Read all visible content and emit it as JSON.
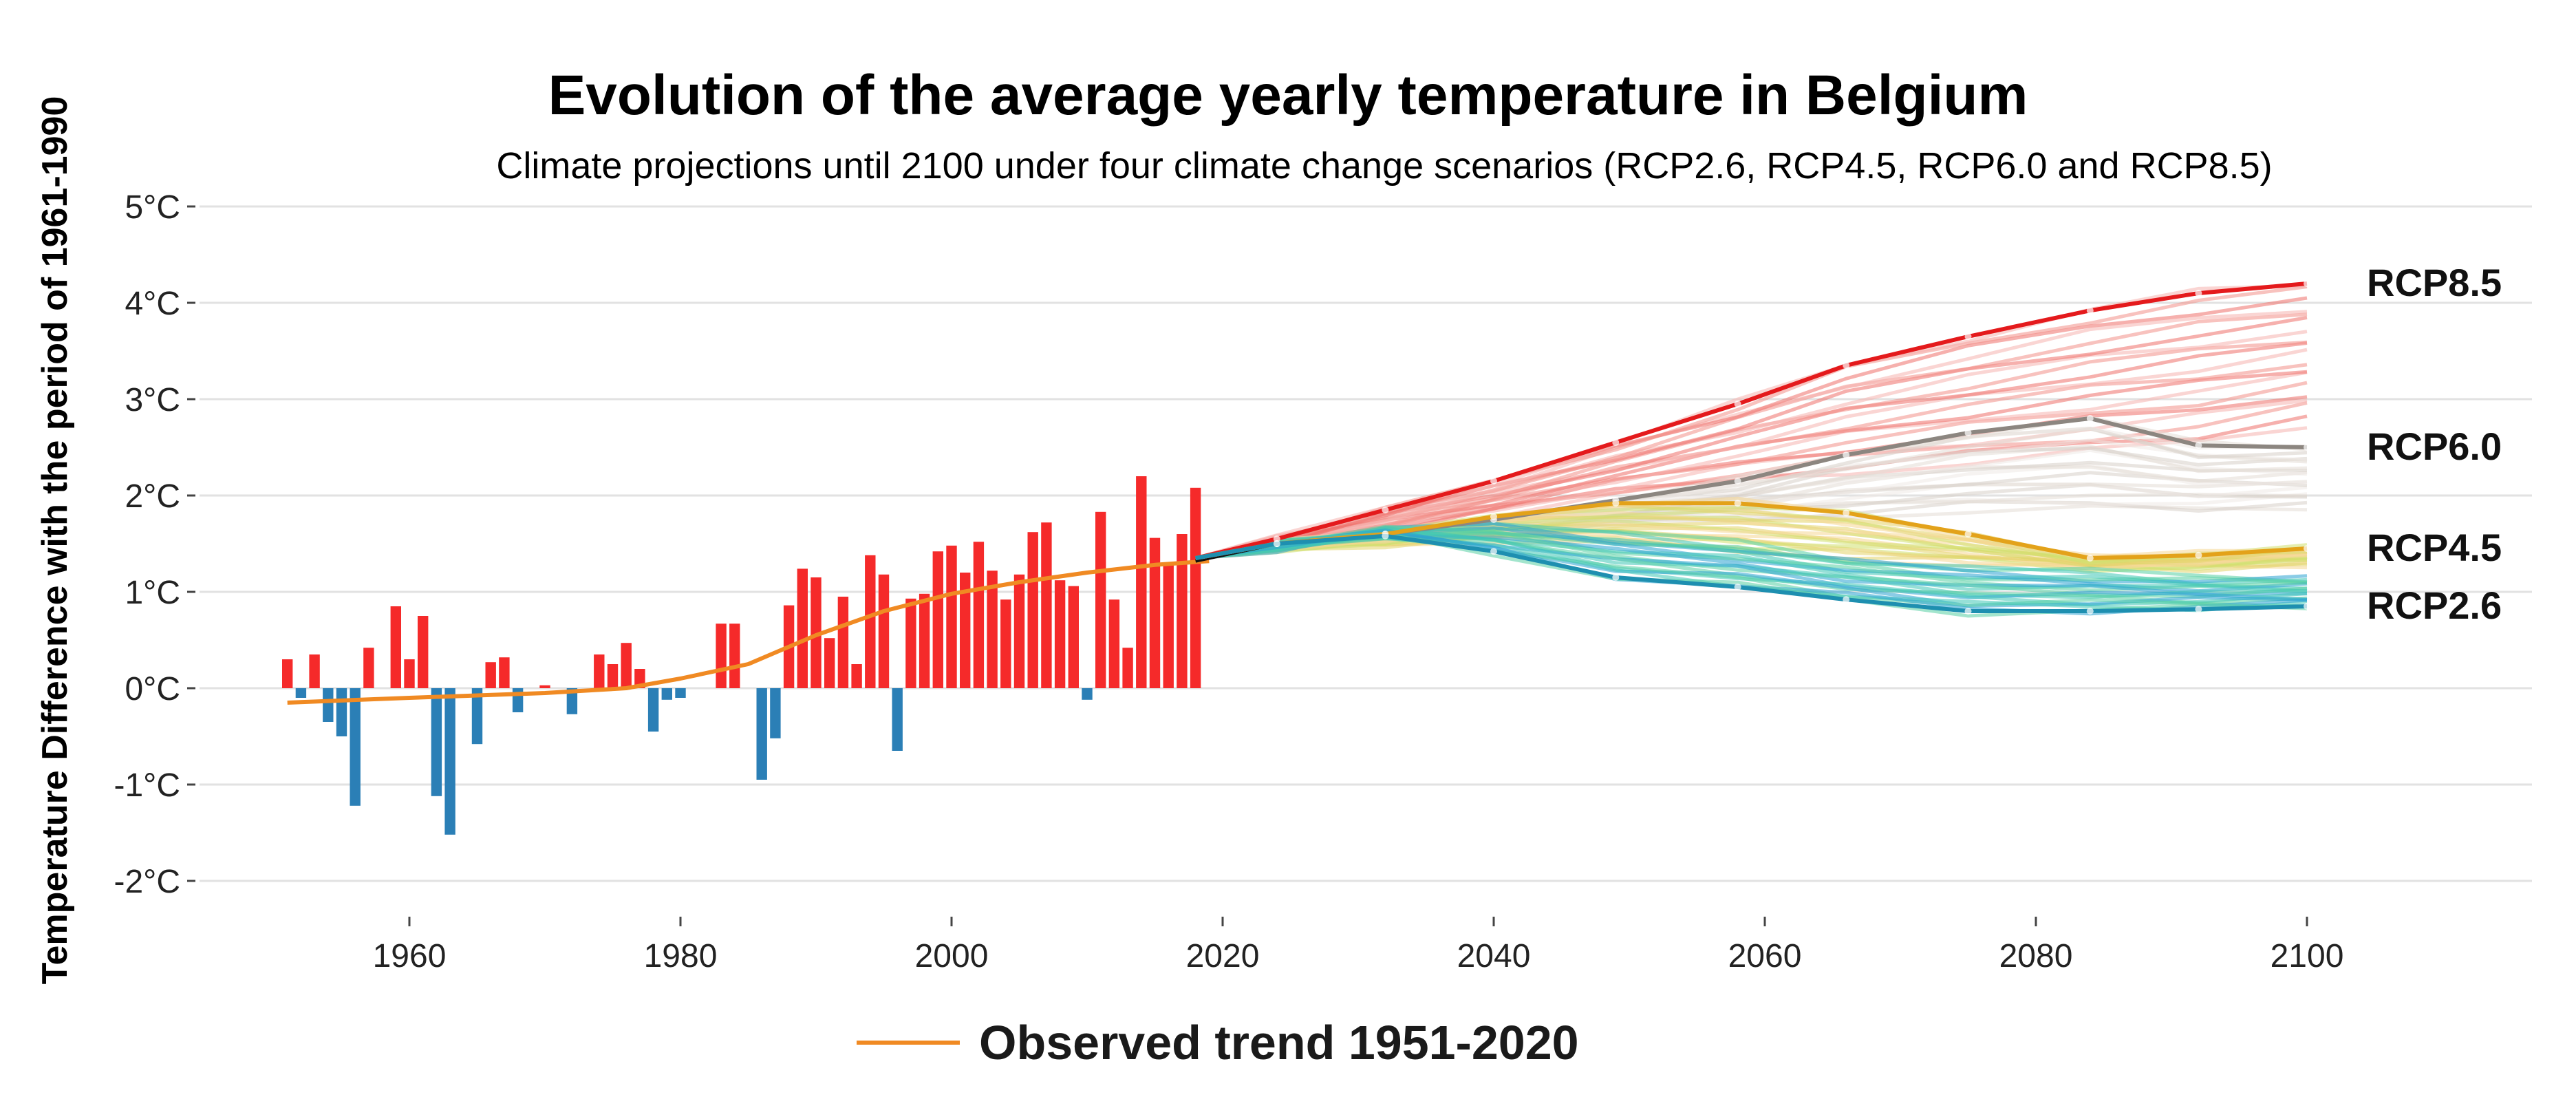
{
  "chart_data": {
    "type": "bar+line",
    "title": "Evolution of the average yearly temperature in Belgium",
    "subtitle": "Climate projections until 2100 under four climate change scenarios (RCP2.6, RCP4.5, RCP6.0 and RCP8.5)",
    "ylabel": "Temperature Difference with the period of 1961-1990",
    "xlabel": "",
    "xlim": [
      1945,
      2112
    ],
    "ylim": [
      -2.3,
      5
    ],
    "x_ticks": [
      1960,
      1980,
      2000,
      2020,
      2040,
      2060,
      2080,
      2100
    ],
    "y_ticks": [
      {
        "value": 5,
        "label": "5°C"
      },
      {
        "value": 4,
        "label": "4°C"
      },
      {
        "value": 3,
        "label": "3°C"
      },
      {
        "value": 2,
        "label": "2°C"
      },
      {
        "value": 1,
        "label": "1°C"
      },
      {
        "value": 0,
        "label": "0°C"
      },
      {
        "value": -1,
        "label": "-1°C"
      },
      {
        "value": -2,
        "label": "-2°C"
      }
    ],
    "grid": true,
    "colors": {
      "positive": "#f52a2a",
      "negative": "#2b7fb6",
      "trend": "#f08a23"
    },
    "observed_anomalies": {
      "years": [
        1951,
        1952,
        1953,
        1954,
        1955,
        1956,
        1957,
        1958,
        1959,
        1960,
        1961,
        1962,
        1963,
        1964,
        1965,
        1966,
        1967,
        1968,
        1969,
        1970,
        1971,
        1972,
        1973,
        1974,
        1975,
        1976,
        1977,
        1978,
        1979,
        1980,
        1981,
        1982,
        1983,
        1984,
        1985,
        1986,
        1987,
        1988,
        1989,
        1990,
        1991,
        1992,
        1993,
        1994,
        1995,
        1996,
        1997,
        1998,
        1999,
        2000,
        2001,
        2002,
        2003,
        2004,
        2005,
        2006,
        2007,
        2008,
        2009,
        2010,
        2011,
        2012,
        2013,
        2014,
        2015,
        2016,
        2017,
        2018
      ],
      "values": [
        0.3,
        -0.1,
        0.35,
        -0.35,
        -0.5,
        -1.22,
        0.42,
        0.0,
        0.85,
        0.3,
        0.75,
        -1.12,
        -1.52,
        0.0,
        -0.58,
        0.27,
        0.32,
        -0.25,
        0.0,
        0.03,
        0.0,
        -0.27,
        0.0,
        0.35,
        0.25,
        0.47,
        0.2,
        -0.45,
        -0.12,
        -0.1,
        0.0,
        0.0,
        0.67,
        0.67,
        0.0,
        -0.95,
        -0.52,
        0.86,
        1.24,
        1.15,
        0.52,
        0.95,
        0.25,
        1.38,
        1.18,
        -0.65,
        0.93,
        0.98,
        1.42,
        1.48,
        1.2,
        1.52,
        1.22,
        0.92,
        1.18,
        1.62,
        1.72,
        1.12,
        1.06,
        -0.12,
        1.83,
        0.92,
        0.42,
        2.2,
        1.56,
        1.3,
        1.6,
        2.08
      ]
    },
    "observed_trend": {
      "name": "Observed trend 1951-2020",
      "x": [
        1951,
        1960,
        1970,
        1976,
        1980,
        1985,
        1990,
        1995,
        2000,
        2005,
        2010,
        2015,
        2019
      ],
      "y": [
        -0.15,
        -0.1,
        -0.05,
        0.0,
        0.1,
        0.25,
        0.55,
        0.8,
        0.98,
        1.1,
        1.2,
        1.28,
        1.32
      ]
    },
    "scenarios": [
      {
        "name": "RCP8.5",
        "color": "#e41a1c",
        "label_value": 4.2,
        "x": [
          2018,
          2024,
          2032,
          2040,
          2049,
          2058,
          2066,
          2075,
          2084,
          2092,
          2100
        ],
        "y": [
          1.35,
          1.55,
          1.85,
          2.15,
          2.55,
          2.95,
          3.35,
          3.65,
          3.92,
          4.1,
          4.2
        ],
        "spread": [
          1.35,
          1.48,
          1.65,
          1.82,
          2.0,
          2.15,
          2.25,
          2.35,
          2.45,
          2.55,
          2.75
        ]
      },
      {
        "name": "RCP6.0",
        "color": "#8c8680",
        "label_value": 2.5,
        "x": [
          2018,
          2024,
          2032,
          2040,
          2049,
          2058,
          2066,
          2075,
          2084,
          2092,
          2100
        ],
        "y": [
          1.35,
          1.5,
          1.6,
          1.75,
          1.95,
          2.15,
          2.42,
          2.65,
          2.8,
          2.52,
          2.5
        ],
        "spread": [
          1.35,
          1.45,
          1.55,
          1.6,
          1.7,
          1.75,
          1.8,
          1.85,
          1.85,
          1.85,
          1.9
        ]
      },
      {
        "name": "RCP4.5",
        "color": "#e3a21a",
        "label_value": 1.45,
        "x": [
          2018,
          2024,
          2032,
          2040,
          2049,
          2058,
          2066,
          2075,
          2084,
          2092,
          2100
        ],
        "y": [
          1.35,
          1.5,
          1.6,
          1.78,
          1.92,
          1.92,
          1.82,
          1.6,
          1.35,
          1.38,
          1.45
        ],
        "spread": [
          1.35,
          1.45,
          1.5,
          1.55,
          1.5,
          1.42,
          1.35,
          1.3,
          1.25,
          1.25,
          1.3
        ]
      },
      {
        "name": "RCP2.6",
        "color": "#1e8fb0",
        "label_value": 0.85,
        "x": [
          2018,
          2024,
          2032,
          2040,
          2049,
          2058,
          2066,
          2075,
          2084,
          2092,
          2100
        ],
        "y": [
          1.35,
          1.5,
          1.58,
          1.42,
          1.15,
          1.05,
          0.92,
          0.8,
          0.8,
          0.82,
          0.85
        ],
        "spread": [
          1.35,
          1.45,
          1.65,
          1.7,
          1.6,
          1.5,
          1.35,
          1.25,
          1.2,
          1.15,
          1.15
        ]
      }
    ]
  }
}
